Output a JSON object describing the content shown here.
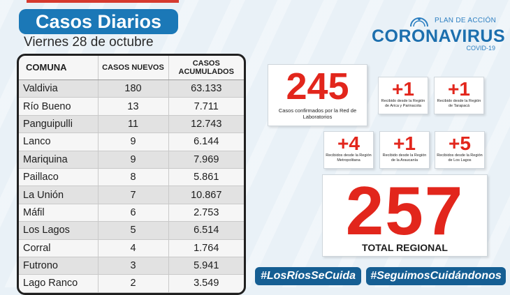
{
  "header": {
    "title": "Casos Diarios",
    "date": "Viernes 28 de octubre"
  },
  "table": {
    "columns": [
      "COMUNA",
      "CASOS NUEVOS",
      "CASOS ACUMULADOS"
    ],
    "rows": [
      [
        "Valdivia",
        "180",
        "63.133"
      ],
      [
        "Río Bueno",
        "13",
        "7.711"
      ],
      [
        "Panguipulli",
        "11",
        "12.743"
      ],
      [
        "Lanco",
        "9",
        "6.144"
      ],
      [
        "Mariquina",
        "9",
        "7.969"
      ],
      [
        "Paillaco",
        "8",
        "5.861"
      ],
      [
        "La Unión",
        "7",
        "10.867"
      ],
      [
        "Máfil",
        "6",
        "2.753"
      ],
      [
        "Los Lagos",
        "5",
        "6.514"
      ],
      [
        "Corral",
        "4",
        "1.764"
      ],
      [
        "Futrono",
        "3",
        "5.941"
      ],
      [
        "Lago Ranco",
        "2",
        "3.549"
      ]
    ]
  },
  "logo": {
    "plan": "PLAN DE ACCIÓN",
    "main": "CORONAVIRUS",
    "sub": "COVID-19"
  },
  "stats": {
    "lab": {
      "value": "245",
      "label": "Casos confirmados por la Red de Laboratorios"
    },
    "arica": {
      "value": "+1",
      "label": "Recibido desde la Región de Arica y Parinacota"
    },
    "tarapaca": {
      "value": "+1",
      "label": "Recibido desde la Región de Tarapacá"
    },
    "metropolitana": {
      "value": "+4",
      "label": "Recibidos desde la Región Metropolitana"
    },
    "araucania": {
      "value": "+1",
      "label": "Recibido desde la Región de la Araucanía"
    },
    "loslagos": {
      "value": "+5",
      "label": "Recibidos desde la Región de Los Lagos"
    },
    "total": {
      "value": "257",
      "label": "TOTAL REGIONAL"
    }
  },
  "hashtags": [
    "#LosRíosSeCuida",
    "#SeguimosCuidándonos"
  ],
  "colors": {
    "title_bg": "#1b78b7",
    "accent_red": "#e2261c",
    "hashtag_bg": "#155e93"
  }
}
